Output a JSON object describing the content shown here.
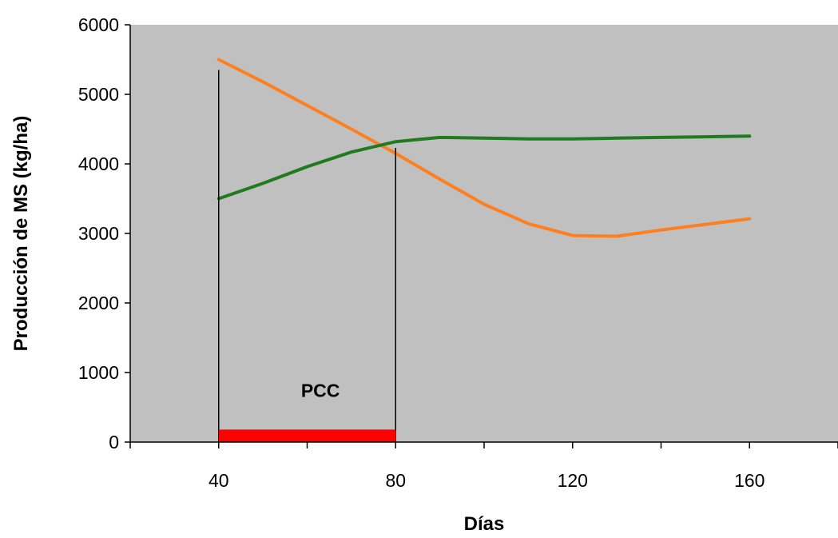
{
  "chart_data": {
    "type": "line",
    "xlabel": "Días",
    "ylabel": "Producción de MS (kg/ha)",
    "xlim": [
      20,
      180
    ],
    "ylim": [
      0,
      6000
    ],
    "x_ticks": [
      40,
      80,
      120,
      160
    ],
    "x_minor_ticks": [
      20,
      60,
      100,
      140,
      180
    ],
    "y_ticks": [
      0,
      1000,
      2000,
      3000,
      4000,
      5000,
      6000
    ],
    "grid": false,
    "legend": "none",
    "plot_background": "#c0c0c0",
    "series": [
      {
        "color": "#ff7f1f",
        "x": [
          40,
          50,
          60,
          70,
          80,
          90,
          100,
          110,
          120,
          130,
          140,
          150,
          160
        ],
        "y": [
          5500,
          5180,
          4840,
          4500,
          4150,
          3780,
          3420,
          3140,
          2970,
          2960,
          3050,
          3130,
          3210
        ]
      },
      {
        "color": "#1e7b1e",
        "x": [
          40,
          50,
          60,
          70,
          80,
          90,
          100,
          110,
          120,
          130,
          140,
          150,
          160
        ],
        "y": [
          3500,
          3720,
          3960,
          4170,
          4320,
          4380,
          4370,
          4360,
          4360,
          4370,
          4380,
          4390,
          4400
        ]
      }
    ],
    "annotations": {
      "vlines": [
        {
          "x": 40,
          "y_top": 5350
        },
        {
          "x": 80,
          "y_top": 4230
        }
      ],
      "bar": {
        "x_start": 40,
        "x_end": 80,
        "height": 180,
        "color": "#ff0000"
      },
      "label": {
        "text": "PCC",
        "x": 63,
        "y": 650
      }
    }
  }
}
